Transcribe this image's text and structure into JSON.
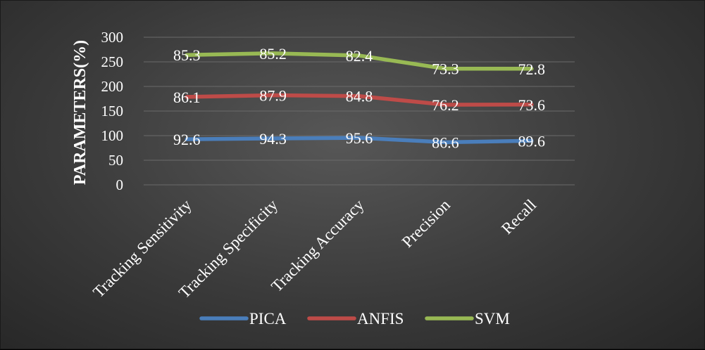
{
  "chart_data": {
    "type": "line",
    "stacked": true,
    "categories": [
      "Tracking Sensitivity",
      "Tracking Specificity",
      "Tracking Accuracy",
      "Precision",
      "Recall"
    ],
    "series": [
      {
        "name": "PICA",
        "values": [
          92.6,
          94.3,
          95.6,
          86.6,
          89.6
        ],
        "color": "#4a7ebb"
      },
      {
        "name": "ANFIS",
        "values": [
          86.1,
          87.9,
          84.8,
          76.2,
          73.6
        ],
        "color": "#be4b48"
      },
      {
        "name": "SVM",
        "values": [
          85.3,
          85.2,
          82.4,
          73.3,
          72.8
        ],
        "color": "#98b954"
      }
    ],
    "title": "",
    "xlabel": "",
    "ylabel": "PARAMETERS(%)",
    "ylim": [
      0,
      300
    ],
    "yticks": [
      0,
      50,
      100,
      150,
      200,
      250,
      300
    ],
    "grid": true,
    "legend": "bottom"
  }
}
